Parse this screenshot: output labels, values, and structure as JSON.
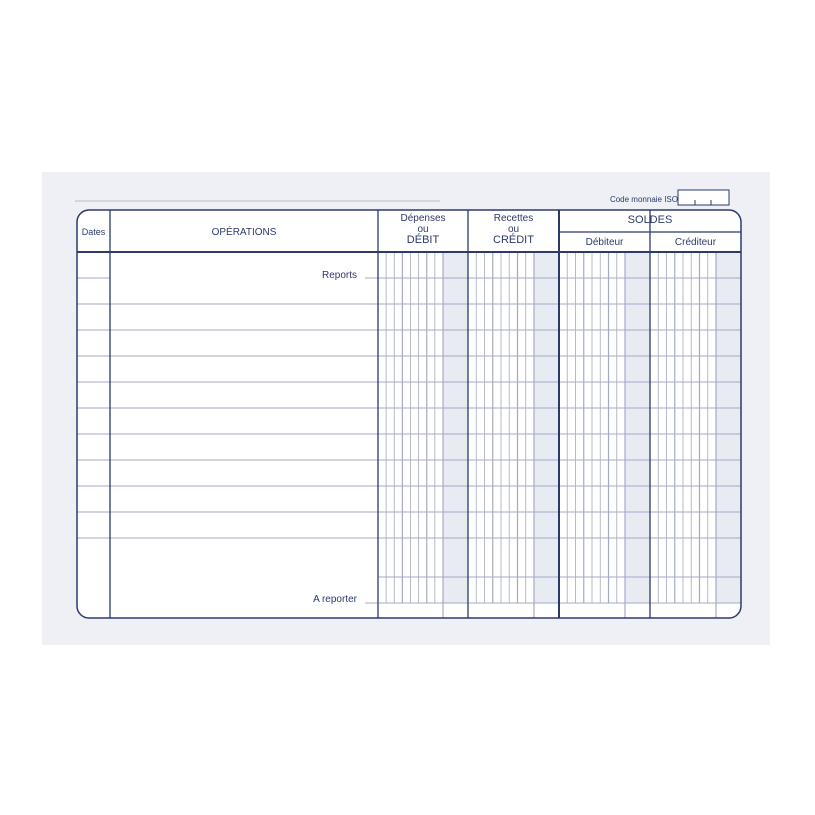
{
  "form": {
    "currency_label": "Code monnaie ISO",
    "headers": {
      "dates": "Dates",
      "operations": "OPÉRATIONS",
      "debit_line1": "Dépenses",
      "debit_line2": "ou",
      "debit_line3": "DÉBIT",
      "credit_line1": "Recettes",
      "credit_line2": "ou",
      "credit_line3": "CRÉDIT",
      "soldes": "SOLDES",
      "debiteur": "Débiteur",
      "crediteur": "Créditeur"
    },
    "reports_label": "Reports",
    "a_reporter_label": "A reporter",
    "colors": {
      "ink": "#2b3a6b",
      "grid": "#a3abc4",
      "cents_shade": "#e9ebf2",
      "background": "#eef0f5"
    }
  }
}
